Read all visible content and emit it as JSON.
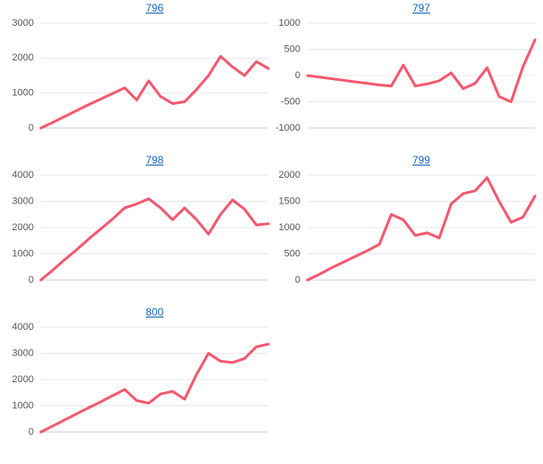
{
  "chart_data": [
    {
      "type": "line",
      "title": "796",
      "categories": [
        null,
        null,
        null,
        null,
        null,
        null,
        null,
        null,
        null,
        null,
        null,
        null,
        null,
        null,
        null,
        null,
        null,
        null,
        null,
        null
      ],
      "series": [
        {
          "color": "#f5576f",
          "values": [
            0,
            160,
            330,
            500,
            670,
            830,
            990,
            1150,
            800,
            1350,
            900,
            700,
            750,
            1100,
            1500,
            2050,
            1750,
            1500,
            1900,
            1700
          ]
        }
      ],
      "ylim": [
        0,
        3000
      ],
      "yticks": [
        0,
        1000,
        2000,
        3000
      ],
      "grid": true
    },
    {
      "type": "line",
      "title": "797",
      "categories": [
        null,
        null,
        null,
        null,
        null,
        null,
        null,
        null,
        null,
        null,
        null,
        null,
        null,
        null,
        null,
        null,
        null,
        null,
        null,
        null
      ],
      "series": [
        {
          "color": "#f5576f",
          "values": [
            0,
            -30,
            -60,
            -90,
            -120,
            -150,
            -180,
            -200,
            200,
            -200,
            -160,
            -100,
            50,
            -250,
            -150,
            150,
            -400,
            -500,
            170,
            680
          ]
        }
      ],
      "ylim": [
        -1000,
        1000
      ],
      "yticks": [
        -1000,
        -500,
        0,
        500,
        1000
      ],
      "grid": true
    },
    {
      "type": "line",
      "title": "798",
      "categories": [
        null,
        null,
        null,
        null,
        null,
        null,
        null,
        null,
        null,
        null,
        null,
        null,
        null,
        null,
        null,
        null,
        null,
        null,
        null,
        null
      ],
      "series": [
        {
          "color": "#f5576f",
          "values": [
            0,
            380,
            780,
            1160,
            1570,
            1950,
            2330,
            2750,
            2900,
            3100,
            2750,
            2300,
            2750,
            2300,
            1750,
            2500,
            3050,
            2700,
            2100,
            2150
          ]
        }
      ],
      "ylim": [
        0,
        4000
      ],
      "yticks": [
        0,
        1000,
        2000,
        3000,
        4000
      ],
      "grid": true
    },
    {
      "type": "line",
      "title": "799",
      "categories": [
        null,
        null,
        null,
        null,
        null,
        null,
        null,
        null,
        null,
        null,
        null,
        null,
        null,
        null,
        null,
        null,
        null,
        null,
        null,
        null
      ],
      "series": [
        {
          "color": "#f5576f",
          "values": [
            0,
            110,
            230,
            340,
            450,
            560,
            680,
            1250,
            1150,
            850,
            900,
            800,
            1450,
            1650,
            1700,
            1950,
            1500,
            1100,
            1200,
            1600
          ]
        }
      ],
      "ylim": [
        0,
        2000
      ],
      "yticks": [
        0,
        500,
        1000,
        1500,
        2000
      ],
      "grid": true
    },
    {
      "type": "line",
      "title": "800",
      "categories": [
        null,
        null,
        null,
        null,
        null,
        null,
        null,
        null,
        null,
        null,
        null,
        null,
        null,
        null,
        null,
        null,
        null,
        null,
        null,
        null
      ],
      "series": [
        {
          "color": "#f5576f",
          "values": [
            0,
            230,
            460,
            700,
            930,
            1150,
            1390,
            1620,
            1200,
            1100,
            1450,
            1550,
            1250,
            2200,
            3000,
            2700,
            2650,
            2800,
            3250,
            3350
          ]
        }
      ],
      "ylim": [
        0,
        4000
      ],
      "yticks": [
        0,
        1000,
        2000,
        3000,
        4000
      ],
      "grid": true
    }
  ]
}
